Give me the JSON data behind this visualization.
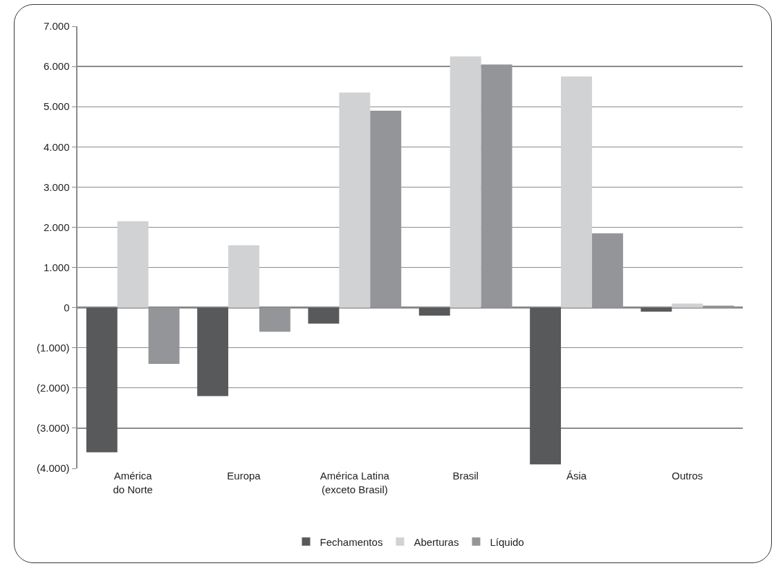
{
  "chart_data": {
    "type": "bar",
    "categories": [
      "América do Norte",
      "Europa",
      "América Latina (exceto Brasil)",
      "Brasil",
      "Ásia",
      "Outros"
    ],
    "series": [
      {
        "name": "Fechamentos",
        "color": "#58595b",
        "values": [
          -3600,
          -2200,
          -400,
          -200,
          -3900,
          -100
        ]
      },
      {
        "name": "Aberturas",
        "color": "#d1d2d4",
        "values": [
          2150,
          1550,
          5350,
          6250,
          5750,
          100
        ]
      },
      {
        "name": "Líquido",
        "color": "#939598",
        "values": [
          -1400,
          -600,
          4900,
          6050,
          1850,
          50
        ]
      }
    ],
    "ylim": [
      -4000,
      7000
    ],
    "yticks": [
      {
        "value": -4000,
        "label": "(4.000)"
      },
      {
        "value": -3000,
        "label": "(3.000)"
      },
      {
        "value": -2000,
        "label": "(2.000)"
      },
      {
        "value": -1000,
        "label": "(1.000)"
      },
      {
        "value": 0,
        "label": "0"
      },
      {
        "value": 1000,
        "label": "1.000"
      },
      {
        "value": 2000,
        "label": "2.000"
      },
      {
        "value": 3000,
        "label": "3.000"
      },
      {
        "value": 4000,
        "label": "4.000"
      },
      {
        "value": 5000,
        "label": "5.000"
      },
      {
        "value": 6000,
        "label": "6.000"
      },
      {
        "value": 7000,
        "label": "7.000"
      }
    ],
    "grid": "y",
    "legend": "bottom"
  }
}
